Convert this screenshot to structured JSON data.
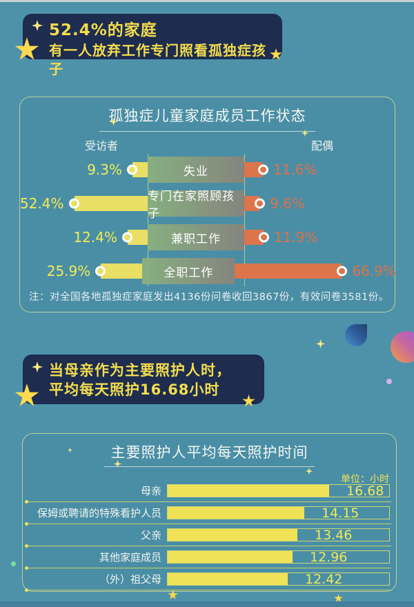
{
  "palette": {
    "background": "#4e92aa",
    "banner_navy": "#1d2c4f",
    "banner_text_yellow": "#f3dd4f",
    "bar_yellow": "#e9df64",
    "bar_orange": "#dc744c",
    "value_yellow": "#f3ec55",
    "value_orange": "#df7048",
    "panel_border": "#dee698",
    "star_yellow": "#ffd94e",
    "text_white": "#f4f7f1"
  },
  "banner1": {
    "line1": "52.4%的家庭",
    "line2": "有一人放弃工作专门照看孤独症孩子"
  },
  "banner2": {
    "line1": "当母亲作为主要照护人时，",
    "line2": "平均每天照护16.68小时"
  },
  "chart_data": [
    {
      "type": "bar",
      "variant": "diverging-horizontal",
      "title": "孤独症儿童家庭成员工作状态",
      "left_header": "受访者",
      "right_header": "配偶",
      "categories": [
        "失业",
        "专门在家照顾孩子",
        "兼职工作",
        "全职工作"
      ],
      "series": [
        {
          "name": "受访者",
          "unit": "%",
          "color": "#e9df64",
          "values": [
            9.3,
            52.4,
            12.4,
            25.9
          ]
        },
        {
          "name": "配偶",
          "unit": "%",
          "color": "#dc744c",
          "values": [
            11.6,
            9.6,
            11.9,
            66.9
          ]
        }
      ],
      "value_labels_left": [
        "9.3%",
        "52.4%",
        "12.4%",
        "25.9%"
      ],
      "value_labels_right": [
        "11.6%",
        "9.6%",
        "11.9%",
        "66.9%"
      ],
      "note": "注：对全国各地孤独症家庭发出4136份问卷收回3867份，有效问卷3581份。",
      "legend_position": "top",
      "grid": false
    },
    {
      "type": "bar",
      "variant": "horizontal",
      "title": "主要照护人平均每天照护时间",
      "unit_label": "单位：小时",
      "categories": [
        "母亲",
        "保姆或聘请的特殊看护人员",
        "父亲",
        "其他家庭成员",
        "（外）祖父母"
      ],
      "values": [
        16.68,
        14.15,
        13.46,
        12.96,
        12.42
      ],
      "value_labels": [
        "16.68",
        "14.15",
        "13.46",
        "12.96",
        "12.42"
      ],
      "xlim": [
        0,
        23
      ],
      "grid": false
    }
  ]
}
